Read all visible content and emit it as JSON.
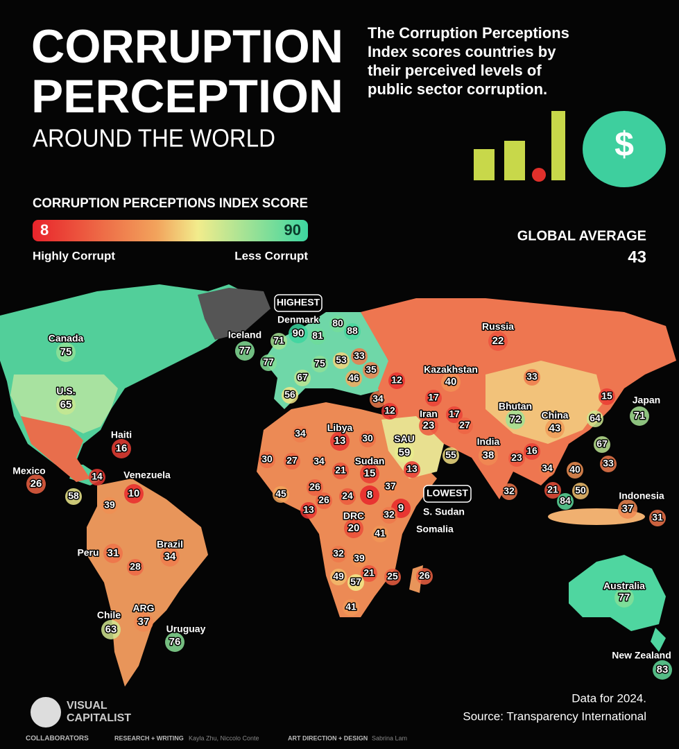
{
  "header": {
    "title_line1": "CORRUPTION",
    "title_line2": "PERCEPTION",
    "subtitle": "AROUND THE WORLD",
    "description": "The Corruption Perceptions Index scores countries by their perceived levels of public sector corruption."
  },
  "legend": {
    "title": "CORRUPTION PERCEPTIONS INDEX SCORE",
    "min": 8,
    "max": 90,
    "min_label": "Highly Corrupt",
    "max_label": "Less Corrupt"
  },
  "global_average": {
    "label": "GLOBAL AVERAGE",
    "value": 43
  },
  "map": {
    "highest_tag": "HIGHEST",
    "lowest_tag": "LOWEST",
    "countries": [
      {
        "name": "Canada",
        "score": 75
      },
      {
        "name": "U.S.",
        "score": 65
      },
      {
        "name": "Mexico",
        "score": 26
      },
      {
        "name": "Haiti",
        "score": 16
      },
      {
        "name": "Venezuela",
        "score": 10
      },
      {
        "name": "Peru",
        "score": 31
      },
      {
        "name": "Brazil",
        "score": 34
      },
      {
        "name": "Chile",
        "score": 63
      },
      {
        "name": "ARG",
        "score": 37
      },
      {
        "name": "Uruguay",
        "score": 76
      },
      {
        "name": "Iceland",
        "score": 77
      },
      {
        "name": "Denmark",
        "score": 90
      },
      {
        "name": "Russia",
        "score": 22
      },
      {
        "name": "Kazakhstan",
        "score": 40
      },
      {
        "name": "Libya",
        "score": 13
      },
      {
        "name": "Sudan",
        "score": 15
      },
      {
        "name": "Iran",
        "score": 23
      },
      {
        "name": "Bhutan",
        "score": 72
      },
      {
        "name": "China",
        "score": 43
      },
      {
        "name": "India",
        "score": 38
      },
      {
        "name": "Japan",
        "score": 71
      },
      {
        "name": "SAU",
        "score": 59
      },
      {
        "name": "DRC",
        "score": 20
      },
      {
        "name": "Indonesia",
        "score": 37
      },
      {
        "name": "Australia",
        "score": 77
      },
      {
        "name": "New Zealand",
        "score": 83
      },
      {
        "name": "S. Sudan",
        "score": 8
      },
      {
        "name": "Somalia",
        "score": 9
      }
    ],
    "unlabeled_scores": [
      71,
      77,
      80,
      81,
      88,
      75,
      53,
      33,
      67,
      46,
      35,
      12,
      56,
      34,
      12,
      17,
      17,
      27,
      33,
      15,
      64,
      67,
      33,
      30,
      34,
      30,
      27,
      34,
      21,
      55,
      13,
      23,
      16,
      34,
      40,
      21,
      50,
      84,
      32,
      45,
      26,
      26,
      13,
      24,
      37,
      32,
      41,
      32,
      39,
      21,
      25,
      26,
      49,
      57,
      41,
      14,
      58,
      39,
      28,
      31
    ]
  },
  "footer": {
    "note": "Data for 2024.",
    "source": "Source: Transparency International",
    "brand_line1": "VISUAL",
    "brand_line2": "CAPITALIST",
    "collaborators": "COLLABORATORS",
    "research_label": "RESEARCH + WRITING",
    "research": "Kayla Zhu, Niccolo Conte",
    "design_label": "ART DIRECTION + DESIGN",
    "design": "Sabrina Lam"
  }
}
